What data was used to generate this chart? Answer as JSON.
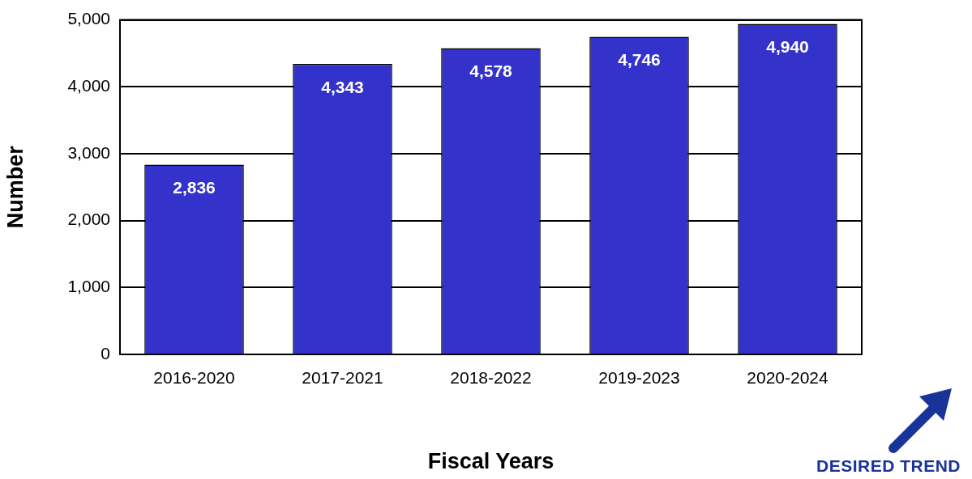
{
  "chart_data": {
    "type": "bar",
    "xlabel": "Fiscal Years",
    "ylabel": "Number",
    "categories": [
      "2016-2020",
      "2017-2021",
      "2018-2022",
      "2019-2023",
      "2020-2024"
    ],
    "values": [
      2836,
      4343,
      4578,
      4746,
      4940
    ],
    "color": "#3333cc",
    "ylim": [
      0,
      5000
    ],
    "yticks": [
      {
        "value": 0,
        "label": "0"
      },
      {
        "value": 1000,
        "label": "1,000"
      },
      {
        "value": 2000,
        "label": "2,000"
      },
      {
        "value": 3000,
        "label": "3,000"
      },
      {
        "value": 4000,
        "label": "4,000"
      },
      {
        "value": 5000,
        "label": "5,000"
      }
    ],
    "value_labels": [
      "2,836",
      "4,343",
      "4,578",
      "4,746",
      "4,940"
    ],
    "grid": "y",
    "legend": false,
    "annotations": [
      "DESIRED TREND"
    ]
  }
}
